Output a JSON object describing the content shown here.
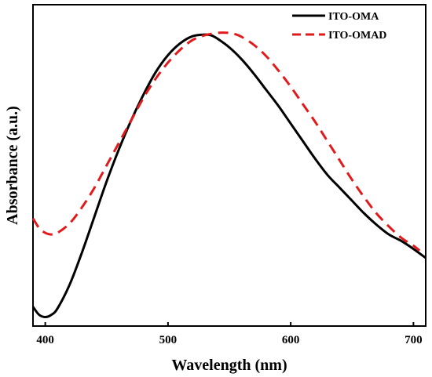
{
  "chart_data": {
    "type": "line",
    "xlabel": "Wavelength (nm)",
    "ylabel": "Absorbance (a.u.)",
    "xlim": [
      390,
      710
    ],
    "ylim": [
      0,
      1
    ],
    "x_ticks": [
      400,
      500,
      600,
      700
    ],
    "y_ticks": [],
    "grid": false,
    "legend_position": "top-right",
    "series": [
      {
        "name": "ITO-OMA",
        "color": "#000000",
        "line_style": "solid",
        "x": [
          390,
          395,
          400,
          405,
          410,
          420,
          430,
          440,
          450,
          460,
          470,
          480,
          490,
          500,
          510,
          520,
          530,
          535,
          540,
          550,
          560,
          570,
          580,
          590,
          600,
          610,
          620,
          630,
          640,
          650,
          660,
          670,
          680,
          690,
          700,
          710
        ],
        "y": [
          0.06,
          0.035,
          0.028,
          0.035,
          0.055,
          0.13,
          0.23,
          0.34,
          0.45,
          0.55,
          0.64,
          0.72,
          0.79,
          0.843,
          0.88,
          0.902,
          0.907,
          0.905,
          0.895,
          0.867,
          0.83,
          0.785,
          0.735,
          0.685,
          0.63,
          0.575,
          0.52,
          0.47,
          0.43,
          0.39,
          0.35,
          0.315,
          0.285,
          0.265,
          0.24,
          0.212
        ]
      },
      {
        "name": "ITO-OMAD",
        "color": "#e31a1c",
        "line_style": "dashed",
        "x": [
          390,
          395,
          400,
          405,
          410,
          420,
          430,
          440,
          450,
          460,
          470,
          480,
          490,
          500,
          510,
          520,
          530,
          540,
          545,
          550,
          555,
          560,
          570,
          580,
          590,
          600,
          610,
          620,
          630,
          640,
          650,
          660,
          670,
          680,
          690,
          700,
          705
        ],
        "y": [
          0.335,
          0.305,
          0.29,
          0.285,
          0.29,
          0.32,
          0.37,
          0.43,
          0.5,
          0.57,
          0.64,
          0.71,
          0.77,
          0.82,
          0.86,
          0.89,
          0.905,
          0.912,
          0.913,
          0.912,
          0.908,
          0.9,
          0.875,
          0.84,
          0.795,
          0.745,
          0.69,
          0.635,
          0.575,
          0.515,
          0.455,
          0.4,
          0.35,
          0.31,
          0.275,
          0.25,
          0.235
        ]
      }
    ]
  }
}
